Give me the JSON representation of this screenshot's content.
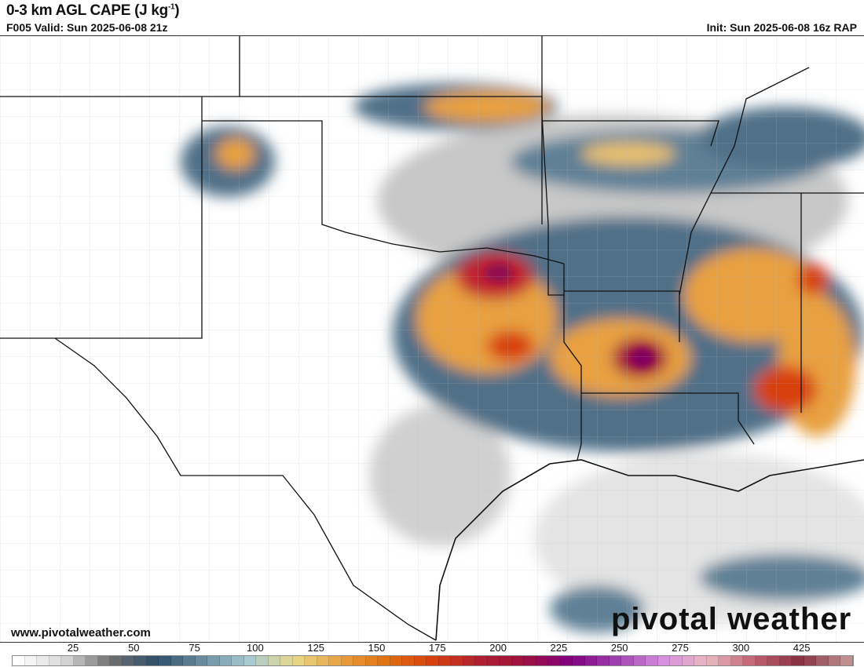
{
  "header": {
    "title": "0-3 km AGL CAPE (J kg",
    "title_sup": "-1",
    "title_end": ")",
    "valid": "F005 Valid: Sun 2025-06-08 21z",
    "init": "Init: Sun 2025-06-08 16z RAP"
  },
  "footer": {
    "url": "www.pivotalweather.com",
    "brand": "pivotal weather"
  },
  "colorbar": {
    "labels": [
      "25",
      "50",
      "75",
      "100",
      "125",
      "150",
      "175",
      "200",
      "225",
      "250",
      "275",
      "300",
      "425"
    ],
    "stops": [
      "#ffffff",
      "#d8d8d8",
      "#707070",
      "#2f4f6b",
      "#6a8ea0",
      "#a8cad3",
      "#e8d98a",
      "#e8a040",
      "#e07010",
      "#d84010",
      "#b02030",
      "#a01040",
      "#800080",
      "#a040b0",
      "#d890e0",
      "#e8b8c0",
      "#c06070",
      "#883040",
      "#c09090"
    ]
  }
}
